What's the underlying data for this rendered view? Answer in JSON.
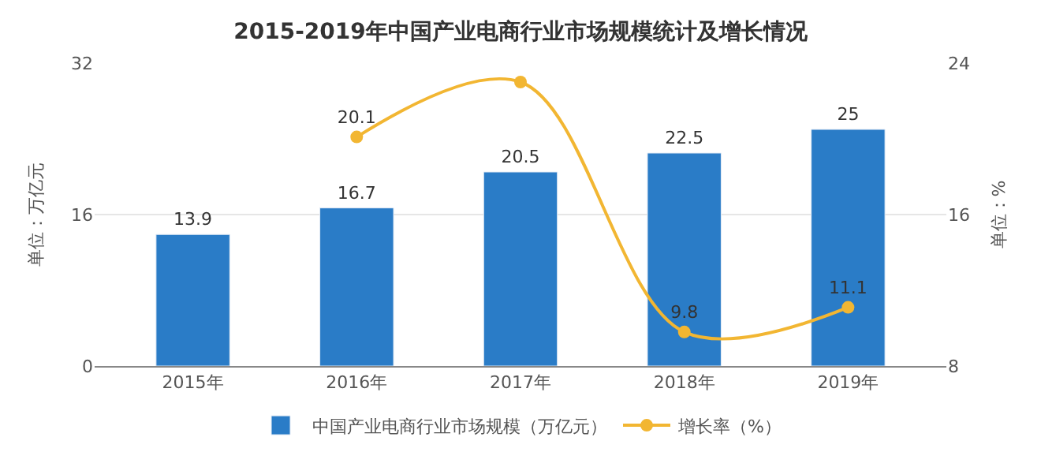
{
  "chart_data": {
    "type": "bar",
    "title": "2015-2019年中国产业电商行业市场规模统计及增长情况",
    "categories": [
      "2015年",
      "2016年",
      "2017年",
      "2018年",
      "2019年"
    ],
    "ylabel": "单位：万亿元",
    "y2label": "单位：%",
    "series": [
      {
        "name": "中国产业电商行业市场规模（万亿元）",
        "color": "#2a7cc7",
        "values": [
          13.9,
          16.7,
          20.5,
          22.5,
          25
        ],
        "value_labels": [
          "13.9",
          "16.7",
          "20.5",
          "22.5",
          "25"
        ]
      },
      {
        "name": "增长率（%）",
        "type": "line",
        "axis": "y2",
        "color": "#f2b632",
        "marker": "circle",
        "values": [
          null,
          20.1,
          23.0,
          9.8,
          11.1
        ],
        "value_labels": [
          null,
          "20.1",
          null,
          "9.8",
          "11.1"
        ]
      }
    ],
    "ylim": [
      0,
      32
    ],
    "yticks": [
      0,
      16,
      32
    ],
    "y2lim": [
      8,
      24
    ],
    "y2ticks": [
      8,
      16,
      24
    ],
    "grid": "y",
    "legend": "bottom"
  }
}
